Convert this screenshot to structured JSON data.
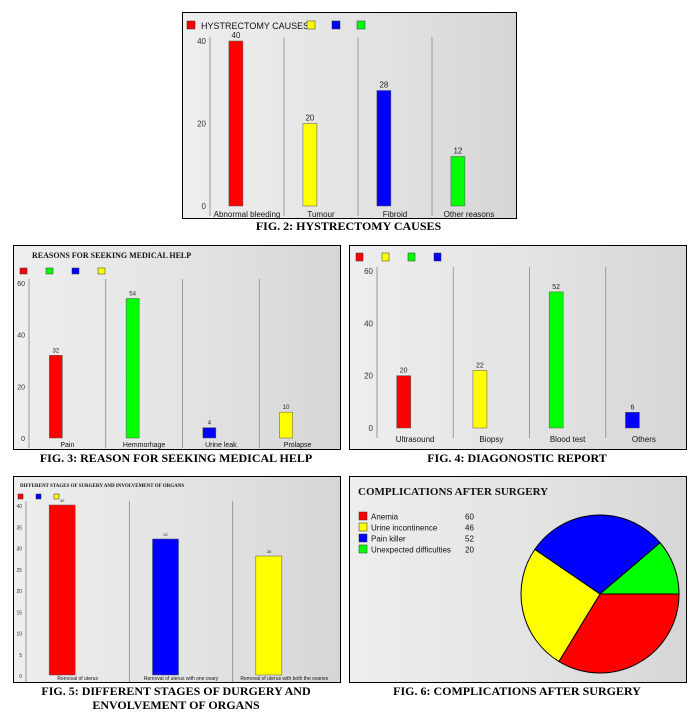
{
  "figures": [
    {
      "caption": "FIG. 2: HYSTRECTOMY CAUSES",
      "chart_data": {
        "type": "bar",
        "title": "HYSTRECTOMY CAUSES:",
        "categories": [
          "Abnormal bleeding",
          "Tumour",
          "Fibroid",
          "Other reasons"
        ],
        "values": [
          40,
          20,
          28,
          12
        ],
        "colors": [
          "#ff0000",
          "#ffff00",
          "#0000ff",
          "#00ff00"
        ],
        "legend_swatches": [
          "#ff0000",
          "#ffff00",
          "#0000ff",
          "#00ff00"
        ],
        "yticks": [
          "0",
          "20",
          "40"
        ],
        "ylim": [
          0,
          40
        ],
        "grid": "vertical separators",
        "legend_position": "top-left"
      }
    },
    {
      "caption": "FIG. 3: REASON FOR SEEKING MEDICAL HELP",
      "chart_data": {
        "type": "bar",
        "title": "REASONS FOR SEEKING MEDICAL HELP",
        "categories": [
          "Pain",
          "Hemmorhage",
          "Urine leak",
          "Prolapse"
        ],
        "values": [
          32,
          54,
          4,
          10
        ],
        "colors": [
          "#ff0000",
          "#00ff00",
          "#0000ff",
          "#ffff00"
        ],
        "legend_swatches": [
          "#ff0000",
          "#00ff00",
          "#0000ff",
          "#ffff00"
        ],
        "yticks": [
          "0",
          "20",
          "40",
          "60"
        ],
        "ylim": [
          0,
          60
        ],
        "grid": "vertical separators",
        "legend_position": "top-left"
      }
    },
    {
      "caption": "FIG. 4: DIAGONOSTIC REPORT",
      "chart_data": {
        "type": "bar",
        "title": "",
        "categories": [
          "Ultrasound",
          "Biopsy",
          "Blood test",
          "Others"
        ],
        "values": [
          20,
          22,
          52,
          6
        ],
        "colors": [
          "#ff0000",
          "#ffff00",
          "#00ff00",
          "#0000ff"
        ],
        "legend_swatches": [
          "#ff0000",
          "#ffff00",
          "#00ff00",
          "#0000ff"
        ],
        "yticks": [
          "0",
          "20",
          "40",
          "60"
        ],
        "ylim": [
          0,
          60
        ],
        "grid": "vertical separators",
        "legend_position": "top-left"
      }
    },
    {
      "caption": "FIG. 5: DIFFERENT STAGES OF DURGERY AND ENVOLVEMENT OF ORGANS",
      "chart_data": {
        "type": "bar",
        "title": "DIFFERENT STAGES OF SURGERY AND INVOLVEMENT OF ORGANS",
        "categories": [
          "Removal of uterus",
          "Removal of uterus with one ovary",
          "Removal of uterus with both the ovaries"
        ],
        "values": [
          40,
          32,
          28
        ],
        "colors": [
          "#ff0000",
          "#0000ff",
          "#ffff00"
        ],
        "legend_swatches": [
          "#ff0000",
          "#0000ff",
          "#ffff00"
        ],
        "yticks": [
          "0",
          "5",
          "10",
          "15",
          "20",
          "25",
          "30",
          "35",
          "40"
        ],
        "ylim": [
          0,
          40
        ],
        "grid": "vertical separators",
        "legend_position": "top-left"
      }
    },
    {
      "caption": "FIG. 6: COMPLICATIONS AFTER SURGERY",
      "chart_data": {
        "type": "pie",
        "title": "COMPLICATIONS AFTER SURGERY",
        "categories": [
          "Anemia",
          "Urine incontinence",
          "Pain killer",
          "Unexpected difficulties"
        ],
        "values": [
          60,
          46,
          52,
          20
        ],
        "colors": [
          "#ff0000",
          "#ffff00",
          "#0000ff",
          "#00ff00"
        ],
        "legend_position": "top-left"
      }
    }
  ]
}
